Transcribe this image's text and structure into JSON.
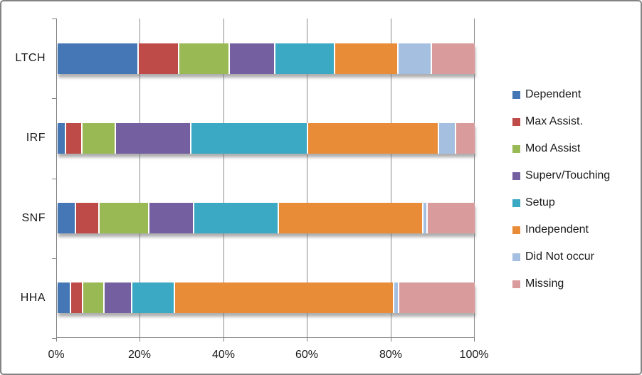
{
  "chart_data": {
    "type": "bar",
    "variant": "stacked-100-horizontal",
    "title": "",
    "xlabel": "",
    "ylabel": "",
    "categories": [
      "LTCH",
      "IRF",
      "SNF",
      "HHA"
    ],
    "series": [
      {
        "name": "Dependent",
        "color": "#4577B7",
        "values": [
          19.5,
          2.0,
          4.4,
          3.3
        ]
      },
      {
        "name": "Max Assist.",
        "color": "#BE4B48",
        "values": [
          9.7,
          4.0,
          5.7,
          2.9
        ]
      },
      {
        "name": "Mod Assist",
        "color": "#98B954",
        "values": [
          12.1,
          8.0,
          11.9,
          5.0
        ]
      },
      {
        "name": "Superv/Touching",
        "color": "#7460A0",
        "values": [
          11.0,
          18.0,
          10.7,
          6.7
        ]
      },
      {
        "name": "Setup",
        "color": "#3BA8C4",
        "values": [
          14.2,
          28.0,
          20.3,
          10.2
        ]
      },
      {
        "name": "Independent",
        "color": "#E98C38",
        "values": [
          15.3,
          31.5,
          34.8,
          52.7
        ]
      },
      {
        "name": "Did Not occur",
        "color": "#A5BFE1",
        "values": [
          8.0,
          4.0,
          0.9,
          1.2
        ]
      },
      {
        "name": "Missing",
        "color": "#D99B9B",
        "values": [
          10.2,
          4.5,
          11.3,
          18.0
        ]
      }
    ],
    "x_axis": {
      "min": 0,
      "max": 100,
      "tick_step": 20,
      "tick_labels": [
        "0%",
        "20%",
        "40%",
        "60%",
        "80%",
        "100%"
      ],
      "unit": "percent",
      "grid": true
    },
    "legend_position": "right",
    "colors": {
      "gridline": "#8c8c8c",
      "axis": "#7f7f7f",
      "text": "#1a1a1a",
      "frame_border": "#838383",
      "segment_separator": "#ffffff"
    }
  }
}
